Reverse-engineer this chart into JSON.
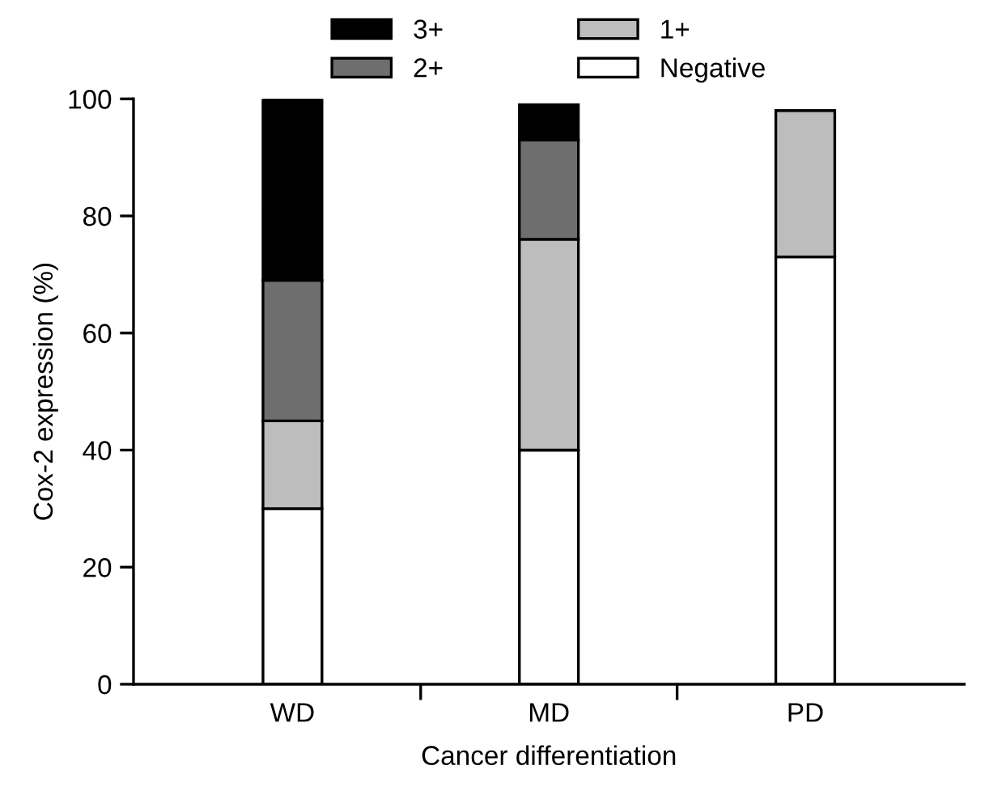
{
  "chart_data": {
    "type": "bar",
    "stacked": true,
    "xlabel": "Cancer differentiation",
    "ylabel": "Cox-2 expression (%)",
    "categories": [
      "WD",
      "MD",
      "PD"
    ],
    "series": [
      {
        "name": "Negative",
        "color": "#ffffff",
        "values": [
          30,
          40,
          73
        ]
      },
      {
        "name": "1+",
        "color": "#bdbdbd",
        "values": [
          15,
          36,
          25
        ]
      },
      {
        "name": "2+",
        "color": "#6e6e6e",
        "values": [
          24,
          17,
          null
        ]
      },
      {
        "name": "3+",
        "color": "#000000",
        "values": [
          31,
          6,
          null
        ]
      }
    ],
    "ylim": [
      0,
      100
    ],
    "yticks": [
      0,
      20,
      40,
      60,
      80,
      100
    ],
    "grid": false,
    "legend": "top"
  }
}
